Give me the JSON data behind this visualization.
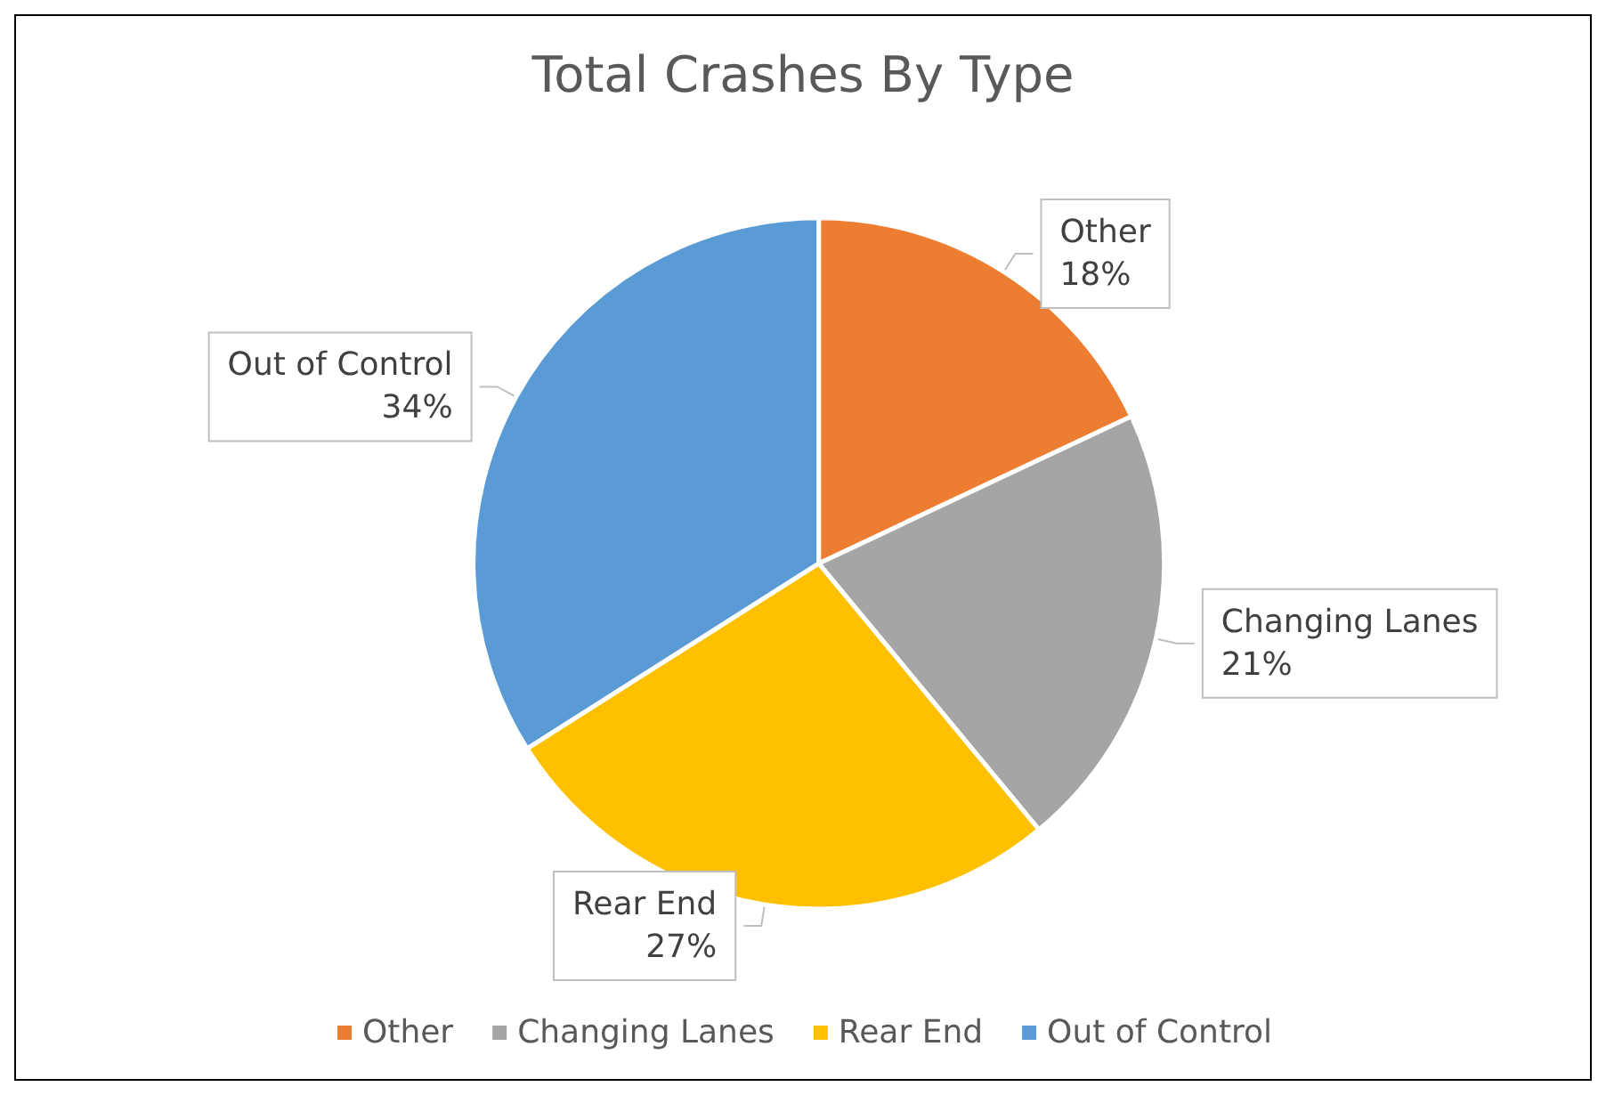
{
  "chart_data": {
    "type": "pie",
    "title": "Total Crashes By Type",
    "categories": [
      "Other",
      "Changing Lanes",
      "Rear End",
      "Out of Control"
    ],
    "values": [
      18,
      21,
      27,
      34
    ],
    "colors": [
      "#ed7d31",
      "#a5a5a5",
      "#ffc000",
      "#5b9bd5"
    ],
    "legend": "bottom",
    "value_labels": [
      "18%",
      "21%",
      "27%",
      "34%"
    ]
  }
}
